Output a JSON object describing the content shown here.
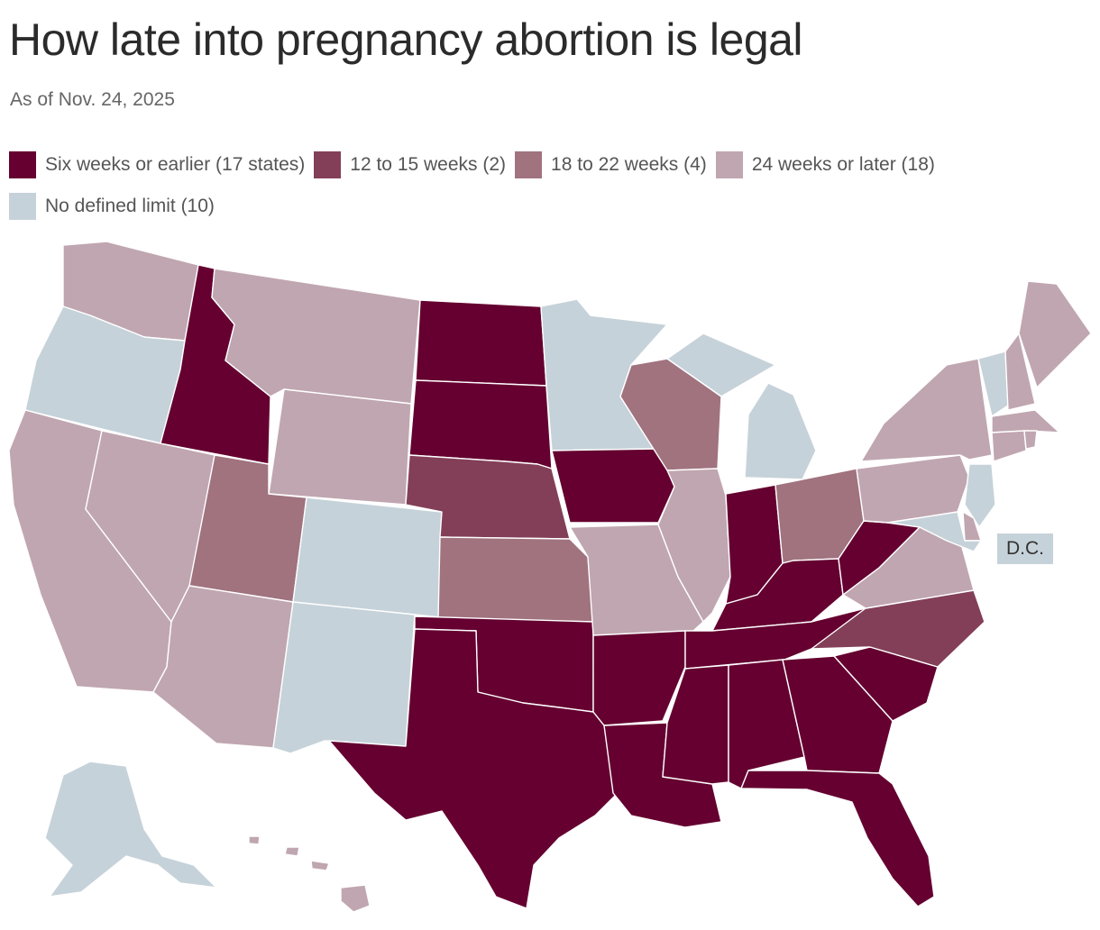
{
  "title": "How late into pregnancy abortion is legal",
  "subtitle": "As of Nov. 24, 2025",
  "colors": {
    "six": "#650030",
    "twelve": "#833f58",
    "eighteen": "#a0737f",
    "twentyfour": "#c0a6b0",
    "none": "#c6d2d9"
  },
  "legend": [
    {
      "label": "Six weeks or earlier (17 states)",
      "color": "#650030"
    },
    {
      "label": "12 to 15 weeks (2)",
      "color": "#833f58"
    },
    {
      "label": "18 to 22 weeks (4)",
      "color": "#a0737f"
    },
    {
      "label": "24 weeks or later (18)",
      "color": "#c0a6b0"
    },
    {
      "label": "No defined limit (10)",
      "color": "#c6d2d9"
    }
  ],
  "dc_label": "D.C.",
  "states": {
    "WA": "twentyfour",
    "OR": "none",
    "CA": "twentyfour",
    "NV": "twentyfour",
    "ID": "six",
    "MT": "twentyfour",
    "WY": "twentyfour",
    "UT": "eighteen",
    "AZ": "twentyfour",
    "CO": "none",
    "NM": "none",
    "ND": "six",
    "SD": "six",
    "NE": "twelve",
    "KS": "eighteen",
    "OK": "six",
    "TX": "six",
    "MN": "none",
    "IA": "six",
    "MO": "twentyfour",
    "AR": "six",
    "LA": "six",
    "WI": "eighteen",
    "IL": "twentyfour",
    "MI": "none",
    "IN": "six",
    "OH": "eighteen",
    "KY": "six",
    "TN": "six",
    "MS": "six",
    "AL": "six",
    "GA": "six",
    "FL": "six",
    "SC": "six",
    "NC": "twelve",
    "VA": "twentyfour",
    "WV": "six",
    "PA": "twentyfour",
    "NY": "twentyfour",
    "VT": "none",
    "NH": "twentyfour",
    "ME": "twentyfour",
    "MA": "twentyfour",
    "RI": "twentyfour",
    "CT": "twentyfour",
    "NJ": "none",
    "DE": "twentyfour",
    "MD": "none",
    "DC": "none",
    "AK": "none",
    "HI": "twentyfour"
  }
}
